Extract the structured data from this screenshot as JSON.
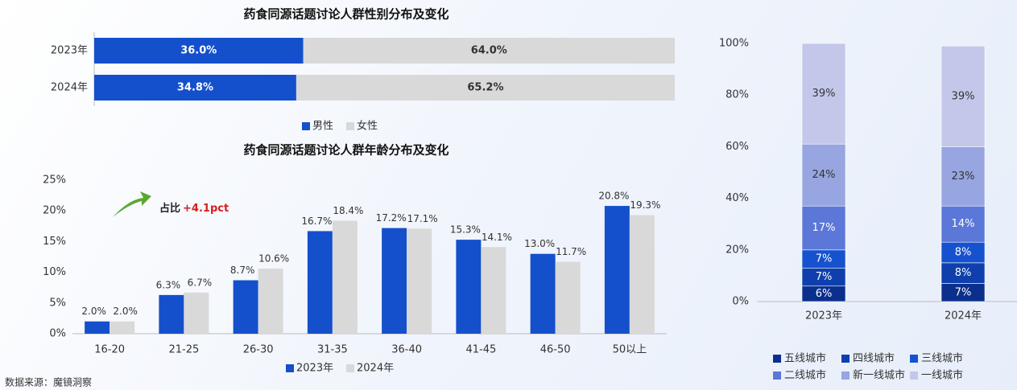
{
  "chart_data": [
    {
      "type": "hbar_stacked",
      "title": "药食同源话题讨论人群性别分布及变化",
      "categories": [
        "2023年",
        "2024年"
      ],
      "xlim": [
        0,
        100
      ],
      "series": [
        {
          "name": "男性",
          "color": "#1450cc",
          "values": [
            36.0,
            34.8
          ],
          "value_labels": [
            "36.0%",
            "34.8%"
          ]
        },
        {
          "name": "女性",
          "color": "#d9d9d9",
          "values": [
            64.0,
            65.2
          ],
          "value_labels": [
            "64.0%",
            "65.2%"
          ]
        }
      ]
    },
    {
      "type": "bar",
      "title": "药食同源话题讨论人群年龄分布及变化",
      "categories": [
        "16-20",
        "21-25",
        "26-30",
        "31-35",
        "36-40",
        "41-45",
        "46-50",
        "50以上"
      ],
      "ylim": [
        0,
        25
      ],
      "yticks": [
        {
          "value": 0,
          "label": "0%"
        },
        {
          "value": 5,
          "label": "5%"
        },
        {
          "value": 10,
          "label": "10%"
        },
        {
          "value": 15,
          "label": "15%"
        },
        {
          "value": 20,
          "label": "20%"
        },
        {
          "value": 25,
          "label": "25%"
        }
      ],
      "annotation": {
        "text": "占比",
        "highlight": "+4.1pct"
      },
      "series": [
        {
          "name": "2023年",
          "color": "#1450cc",
          "values": [
            2.0,
            6.3,
            8.7,
            16.7,
            17.2,
            15.3,
            13.0,
            20.8
          ],
          "value_labels": [
            "2.0%",
            "6.3%",
            "8.7%",
            "16.7%",
            "17.2%",
            "15.3%",
            "13.0%",
            "20.8%"
          ]
        },
        {
          "name": "2024年",
          "color": "#d9d9d9",
          "values": [
            2.0,
            6.7,
            10.6,
            18.4,
            17.1,
            14.1,
            11.7,
            19.3
          ],
          "value_labels": [
            "2.0%",
            "6.7%",
            "10.6%",
            "18.4%",
            "17.1%",
            "14.1%",
            "11.7%",
            "19.3%"
          ]
        }
      ]
    },
    {
      "type": "stacked_bar",
      "categories": [
        "2023年",
        "2024年"
      ],
      "ylim": [
        0,
        100
      ],
      "yticks": [
        {
          "value": 0,
          "label": "0%"
        },
        {
          "value": 20,
          "label": "20%"
        },
        {
          "value": 40,
          "label": "40%"
        },
        {
          "value": 60,
          "label": "60%"
        },
        {
          "value": 80,
          "label": "80%"
        },
        {
          "value": 100,
          "label": "100%"
        }
      ],
      "series": [
        {
          "name": "五线城市",
          "color": "#0a2f8c",
          "values": [
            6,
            7
          ],
          "value_labels": [
            "6%",
            "7%"
          ]
        },
        {
          "name": "四线城市",
          "color": "#0e3fad",
          "values": [
            7,
            8
          ],
          "value_labels": [
            "7%",
            "8%"
          ]
        },
        {
          "name": "三线城市",
          "color": "#1652cf",
          "values": [
            7,
            8
          ],
          "value_labels": [
            "7%",
            "8%"
          ]
        },
        {
          "name": "二线城市",
          "color": "#5b77d8",
          "values": [
            17,
            14
          ],
          "value_labels": [
            "17%",
            "14%"
          ]
        },
        {
          "name": "新一线城市",
          "color": "#97a5e0",
          "values": [
            24,
            23
          ],
          "value_labels": [
            "24%",
            "23%"
          ]
        },
        {
          "name": "一线城市",
          "color": "#c3c8ea",
          "values": [
            39,
            39
          ],
          "value_labels": [
            "39%",
            "39%"
          ]
        }
      ]
    }
  ],
  "source": "数据来源：魔镜洞察"
}
